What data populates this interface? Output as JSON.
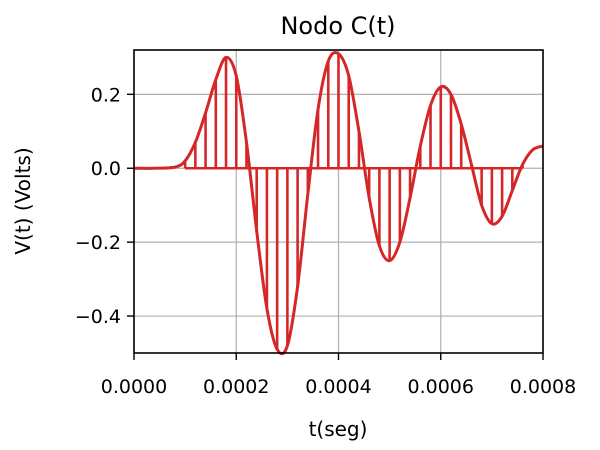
{
  "chart_data": {
    "type": "line",
    "title": "Nodo C(t)",
    "xlabel": "t(seg)",
    "ylabel": "V(t) (Volts)",
    "xlim": [
      0.0,
      0.0008
    ],
    "ylim": [
      -0.5,
      0.32
    ],
    "x_ticks": [
      0.0,
      0.0002,
      0.0004,
      0.0006,
      0.0008
    ],
    "x_tick_labels": [
      "0.0000",
      "0.0002",
      "0.0004",
      "0.0006",
      "0.0008"
    ],
    "y_ticks": [
      -0.4,
      -0.2,
      0.0,
      0.2
    ],
    "y_tick_labels": [
      "−0.4",
      "−0.2",
      "0.0",
      "0.2"
    ],
    "grid": true,
    "color": "#d62728",
    "series": [
      {
        "kind": "line",
        "x": [
          0.0,
          4e-05,
          8e-05,
          0.0001,
          0.00012,
          0.00014,
          0.00016,
          0.00018,
          0.0002,
          0.00022,
          0.00024,
          0.00026,
          0.00028,
          0.0003,
          0.00032,
          0.00034,
          0.00036,
          0.00038,
          0.0004,
          0.00042,
          0.00044,
          0.00046,
          0.00048,
          0.0005,
          0.00052,
          0.00054,
          0.00056,
          0.00058,
          0.0006,
          0.00062,
          0.00064,
          0.00066,
          0.00068,
          0.0007,
          0.00072,
          0.00074,
          0.00076,
          0.00078,
          0.0008
        ],
        "y": [
          0.0,
          0.0,
          0.003,
          0.02,
          0.07,
          0.15,
          0.24,
          0.3,
          0.25,
          0.07,
          -0.17,
          -0.38,
          -0.49,
          -0.48,
          -0.32,
          -0.07,
          0.16,
          0.29,
          0.31,
          0.25,
          0.1,
          -0.08,
          -0.21,
          -0.25,
          -0.2,
          -0.08,
          0.06,
          0.17,
          0.22,
          0.2,
          0.12,
          0.01,
          -0.1,
          -0.15,
          -0.13,
          -0.06,
          0.01,
          0.05,
          0.06
        ]
      },
      {
        "kind": "stem",
        "x": [
          0.0001,
          0.00012,
          0.00014,
          0.00016,
          0.00018,
          0.0002,
          0.00022,
          0.00024,
          0.00026,
          0.00028,
          0.0003,
          0.00032,
          0.00034,
          0.00036,
          0.00038,
          0.0004,
          0.00042,
          0.00044,
          0.00046,
          0.00048,
          0.0005,
          0.00052,
          0.00054,
          0.00056,
          0.00058,
          0.0006,
          0.00062,
          0.00064,
          0.00066,
          0.00068,
          0.0007,
          0.00072,
          0.00074,
          0.00076
        ],
        "y": [
          0.02,
          0.07,
          0.15,
          0.24,
          0.3,
          0.25,
          0.07,
          -0.17,
          -0.38,
          -0.49,
          -0.48,
          -0.32,
          -0.07,
          0.16,
          0.29,
          0.31,
          0.25,
          0.1,
          -0.08,
          -0.21,
          -0.25,
          -0.2,
          -0.08,
          0.06,
          0.17,
          0.22,
          0.2,
          0.12,
          0.01,
          -0.1,
          -0.15,
          -0.13,
          -0.06,
          0.01
        ]
      }
    ]
  }
}
